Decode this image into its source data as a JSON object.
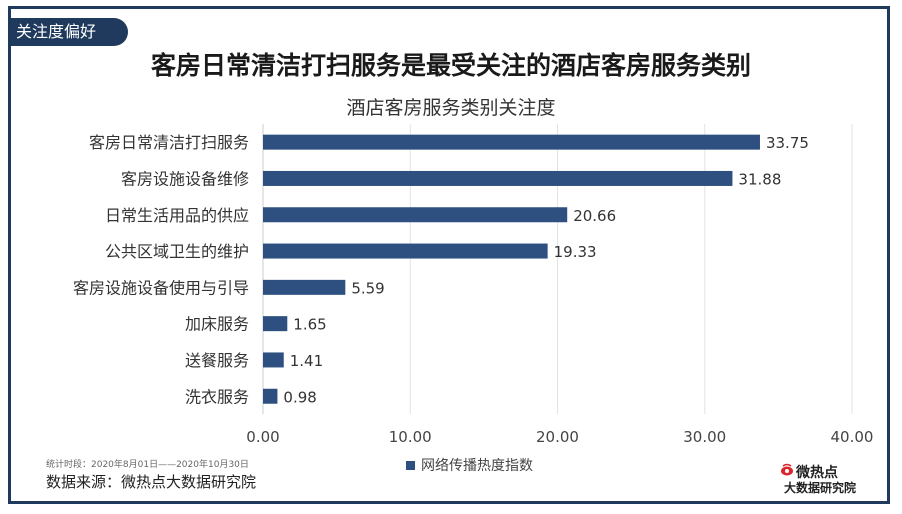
{
  "tag_label": "关注度偏好",
  "main_title": "客房日常清洁打扫服务是最受关注的酒店客房服务类别",
  "period_text": "统计时段：2020年8月01日——2020年10月30日",
  "source_text": "数据来源：微热点大数据研究院",
  "logo": {
    "line1": "微热点",
    "line2": "大数据研究院",
    "accent_color": "#d9262c"
  },
  "colors": {
    "bar": "#2e5080",
    "frame": "#1f3a5c"
  },
  "chart_data": {
    "type": "bar",
    "orientation": "horizontal",
    "title": "酒店客房服务类别关注度",
    "categories": [
      "客房日常清洁打扫服务",
      "客房设施设备维修",
      "日常生活用品的供应",
      "公共区域卫生的维护",
      "客房设施设备使用与引导",
      "加床服务",
      "送餐服务",
      "洗衣服务"
    ],
    "series": [
      {
        "name": "网络传播热度指数",
        "values": [
          33.75,
          31.88,
          20.66,
          19.33,
          5.59,
          1.65,
          1.41,
          0.98
        ]
      }
    ],
    "value_labels": [
      "33.75",
      "31.88",
      "20.66",
      "19.33",
      "5.59",
      "1.65",
      "1.41",
      "0.98"
    ],
    "xlim": [
      0,
      40
    ],
    "x_ticks": [
      0,
      10,
      20,
      30,
      40
    ],
    "x_tick_labels": [
      "0.00",
      "10.00",
      "20.00",
      "30.00",
      "40.00"
    ],
    "grid": "vertical",
    "legend": "bottom"
  }
}
